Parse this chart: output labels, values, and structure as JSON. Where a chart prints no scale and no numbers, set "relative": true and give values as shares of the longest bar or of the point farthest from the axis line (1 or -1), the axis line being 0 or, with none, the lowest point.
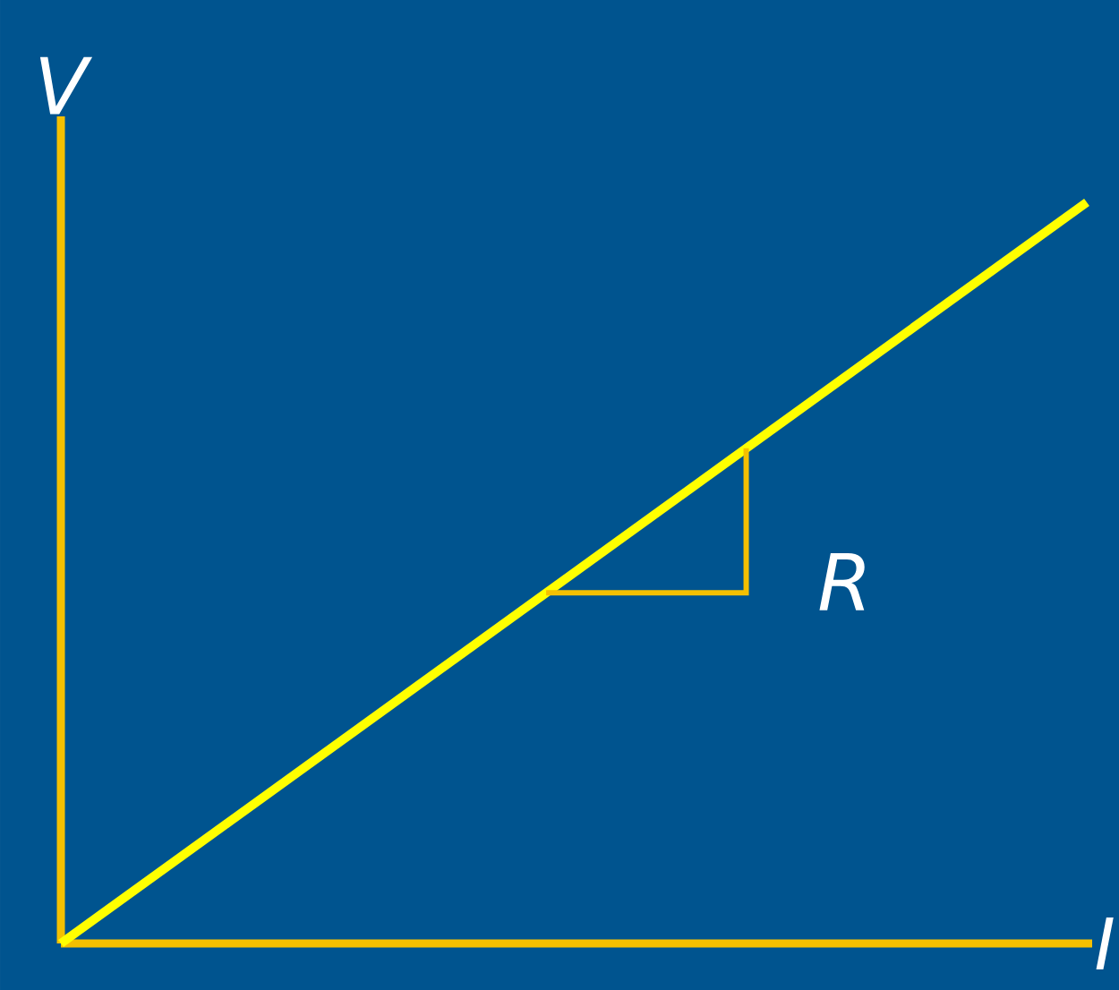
{
  "chart_data": {
    "type": "line",
    "relative": true,
    "xlabel": "I",
    "ylabel": "V",
    "categories": [
      null,
      null
    ],
    "values": [
      0,
      1
    ],
    "color": "#ffff00",
    "annotations": [
      "R"
    ]
  }
}
